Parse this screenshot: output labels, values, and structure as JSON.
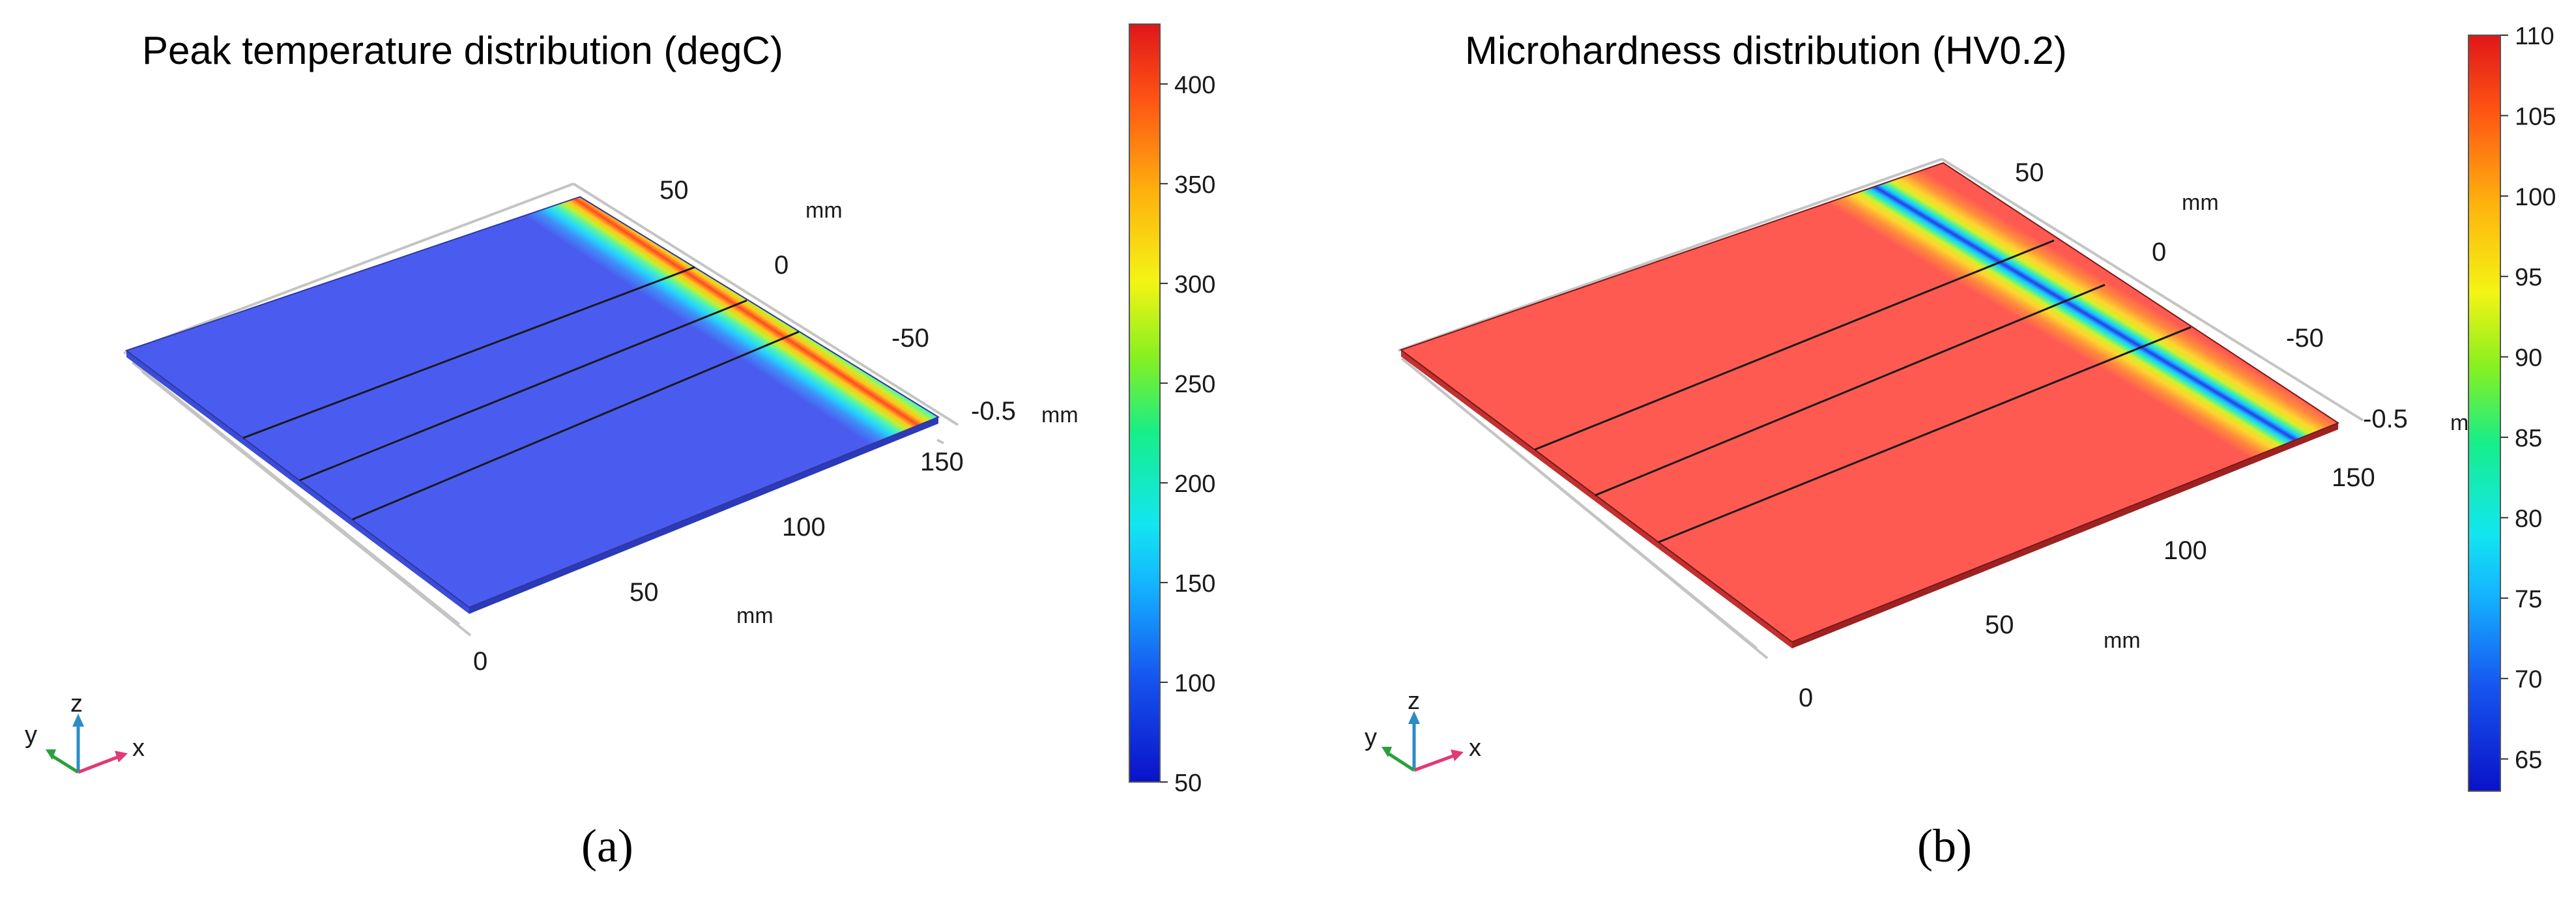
{
  "chart_data": [
    {
      "type": "heatmap",
      "panel_label": "a",
      "title": "Peak temperature distribution (degC)",
      "axes": {
        "x": {
          "label": "mm",
          "ticks": [
            "0",
            "50",
            "100",
            "150"
          ]
        },
        "y": {
          "label": "mm",
          "ticks": [
            "50",
            "0",
            "-50"
          ]
        },
        "z": {
          "label": "mm",
          "ticks": [
            "-0.5"
          ]
        }
      },
      "colorbar": {
        "min": 50,
        "max": 430,
        "ticks": [
          50,
          100,
          150,
          200,
          250,
          300,
          350,
          400
        ],
        "colormap": "rainbow"
      },
      "field": {
        "feature": "heat-affected band along weld line",
        "peak_value": 430,
        "background_value": 70
      },
      "triad": [
        "z",
        "y",
        "x"
      ]
    },
    {
      "type": "heatmap",
      "panel_label": "b",
      "title": "Microhardness distribution (HV0.2)",
      "axes": {
        "x": {
          "label": "mm",
          "ticks": [
            "0",
            "50",
            "100",
            "150"
          ]
        },
        "y": {
          "label": "mm",
          "ticks": [
            "50",
            "0",
            "-50"
          ]
        },
        "z": {
          "label": "m",
          "ticks": [
            "-0.5"
          ]
        }
      },
      "colorbar": {
        "min": 63,
        "max": 110,
        "ticks": [
          65,
          70,
          75,
          80,
          85,
          90,
          95,
          100,
          105,
          110
        ],
        "colormap": "rainbow"
      },
      "field": {
        "feature": "softened band along weld line",
        "minimum_value": 63,
        "background_value": 110
      },
      "triad": [
        "z",
        "y",
        "x"
      ]
    }
  ],
  "captions": {
    "a": "(a)",
    "b": "(b)"
  }
}
